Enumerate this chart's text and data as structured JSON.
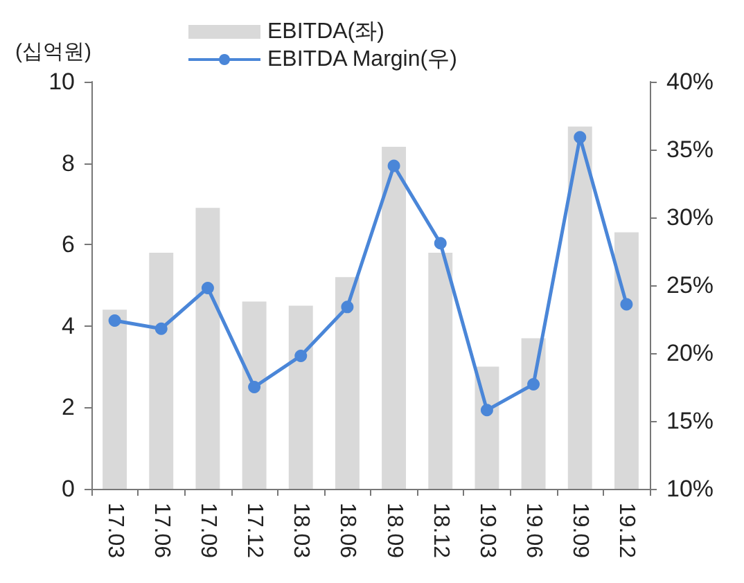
{
  "chart_data": {
    "type": "bar",
    "ylabel": "(십억원)",
    "categories": [
      "17.03",
      "17.06",
      "17.09",
      "17.12",
      "18.03",
      "18.06",
      "18.09",
      "18.12",
      "19.03",
      "19.06",
      "19.09",
      "19.12"
    ],
    "series": [
      {
        "name": "EBITDA(좌)",
        "color": "#d9d9d9",
        "values": [
          4.4,
          5.8,
          6.9,
          4.6,
          4.5,
          5.2,
          8.4,
          5.8,
          3.0,
          3.7,
          8.9,
          6.3
        ]
      },
      {
        "name": "EBITDA Margin(우)",
        "type": "line",
        "axis": "y2",
        "color": "#4a86d8",
        "marker": "circle",
        "values": [
          22.4,
          21.8,
          24.8,
          17.5,
          19.8,
          23.4,
          33.8,
          28.1,
          15.8,
          17.7,
          35.9,
          23.6
        ]
      }
    ],
    "ylim": [
      0,
      10
    ],
    "yticks": [
      0,
      2,
      4,
      6,
      8,
      10
    ],
    "y2lim": [
      10,
      40
    ],
    "y2ticks": [
      {
        "value": 10,
        "label": "10%"
      },
      {
        "value": 15,
        "label": "15%"
      },
      {
        "value": 20,
        "label": "20%"
      },
      {
        "value": 25,
        "label": "25%"
      },
      {
        "value": 30,
        "label": "30%"
      },
      {
        "value": 35,
        "label": "35%"
      },
      {
        "value": 40,
        "label": "40%"
      }
    ],
    "grid": false,
    "legend": "top"
  }
}
